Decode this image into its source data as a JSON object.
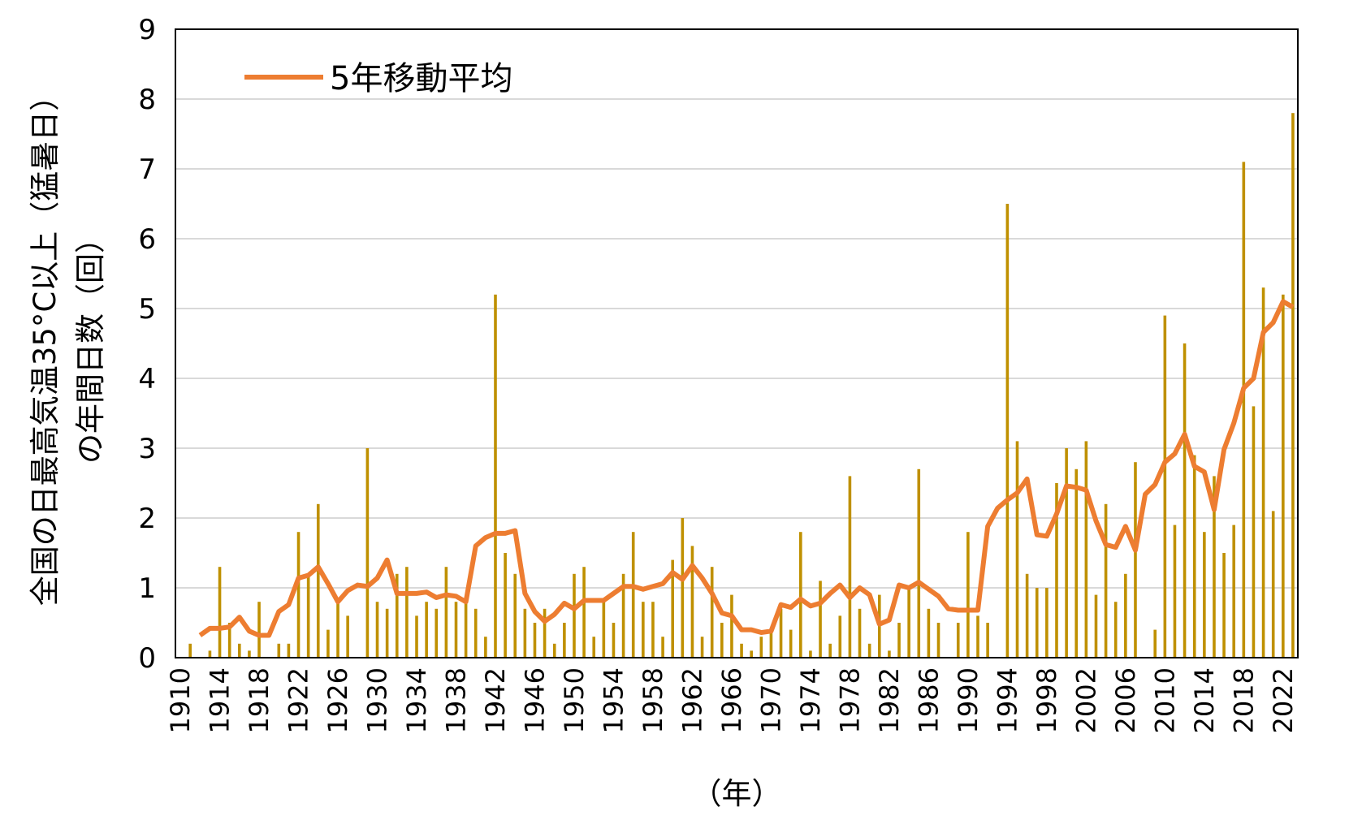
{
  "chart_data": {
    "type": "bar",
    "y_label": [
      "全国の日最高気温35°C以上（猛暑日）",
      "の年間日数（回）"
    ],
    "x_label": "（年）",
    "categories": [
      "1910",
      null,
      null,
      null,
      "1914",
      null,
      null,
      null,
      "1918",
      null,
      null,
      null,
      "1922",
      null,
      null,
      null,
      "1926",
      null,
      null,
      null,
      "1930",
      null,
      null,
      null,
      "1934",
      null,
      null,
      null,
      "1938",
      null,
      null,
      null,
      "1942",
      null,
      null,
      null,
      "1946",
      null,
      null,
      null,
      "1950",
      null,
      null,
      null,
      "1954",
      null,
      null,
      null,
      "1958",
      null,
      null,
      null,
      "1962",
      null,
      null,
      null,
      "1966",
      null,
      null,
      null,
      "1970",
      null,
      null,
      null,
      "1974",
      null,
      null,
      null,
      "1978",
      null,
      null,
      null,
      "1982",
      null,
      null,
      null,
      "1986",
      null,
      null,
      null,
      "1990",
      null,
      null,
      null,
      "1994",
      null,
      null,
      null,
      "1998",
      null,
      null,
      null,
      "2002",
      null,
      null,
      null,
      "2006",
      null,
      null,
      null,
      "2010",
      null,
      null,
      null,
      "2014",
      null,
      null,
      null,
      "2018",
      null,
      null,
      null,
      "2022",
      null
    ],
    "series": [
      {
        "type": "bar",
        "color": "#bf9000",
        "values": [
          0,
          0.2,
          0,
          0.1,
          1.3,
          0.5,
          0.2,
          0.1,
          0.8,
          0,
          0.2,
          0.2,
          1.8,
          1.2,
          2.2,
          0.4,
          0.8,
          0.6,
          0,
          3.0,
          0.8,
          0.7,
          1.2,
          1.3,
          0.6,
          0.8,
          0.7,
          1.3,
          0.8,
          0.8,
          0.7,
          0.3,
          5.2,
          1.5,
          1.2,
          0.7,
          0.5,
          0.7,
          0.2,
          0.5,
          1.2,
          1.3,
          0.3,
          0.8,
          0.5,
          1.2,
          1.8,
          0.8,
          0.8,
          0.3,
          1.4,
          2.0,
          1.6,
          0.3,
          1.3,
          0.5,
          0.9,
          0.2,
          0.1,
          0.3,
          0.4,
          0.7,
          0.4,
          1.8,
          0.1,
          1.1,
          0.2,
          0.6,
          2.6,
          0.7,
          0.2,
          0.9,
          0.1,
          0.5,
          1.0,
          2.7,
          0.7,
          0.5,
          0,
          0.5,
          1.8,
          0.6,
          0.5,
          0,
          6.5,
          3.1,
          1.2,
          1.0,
          1.0,
          2.5,
          3.0,
          2.7,
          3.1,
          0.9,
          2.2,
          0.8,
          1.2,
          2.8,
          0,
          0.4,
          4.9,
          1.9,
          4.5,
          2.9,
          1.8,
          2.6,
          1.5,
          1.9,
          7.1,
          3.6,
          5.3,
          2.1,
          5.2,
          7.8
        ]
      },
      {
        "type": "line",
        "name": "5年移動平均",
        "color": "#ed7d31",
        "values": [
          null,
          null,
          0.32,
          0.42,
          0.42,
          0.44,
          0.58,
          0.38,
          0.32,
          0.32,
          0.66,
          0.76,
          1.14,
          1.18,
          1.3,
          1.06,
          0.8,
          0.96,
          1.04,
          1.02,
          1.14,
          1.4,
          0.92,
          0.92,
          0.92,
          0.94,
          0.86,
          0.9,
          0.88,
          0.8,
          1.6,
          1.72,
          1.78,
          1.78,
          1.82,
          0.92,
          0.66,
          0.52,
          0.62,
          0.78,
          0.7,
          0.82,
          0.82,
          0.82,
          0.92,
          1.02,
          1.02,
          0.98,
          1.02,
          1.06,
          1.22,
          1.12,
          1.32,
          1.14,
          0.92,
          0.64,
          0.6,
          0.4,
          0.4,
          0.36,
          0.38,
          0.76,
          0.72,
          0.84,
          0.74,
          0.78,
          0.92,
          1.04,
          0.86,
          1.0,
          0.9,
          0.48,
          0.54,
          1.04,
          1.0,
          1.08,
          0.98,
          0.88,
          0.7,
          0.68,
          0.68,
          0.68,
          1.88,
          2.14,
          2.26,
          2.36,
          2.56,
          1.76,
          1.74,
          2.06,
          2.46,
          2.44,
          2.4,
          1.96,
          1.62,
          1.58,
          1.88,
          1.54,
          2.34,
          2.48,
          2.8,
          2.92,
          3.2,
          2.74,
          2.66,
          2.12,
          2.98,
          3.36,
          3.86,
          4.0,
          4.66,
          4.8,
          5.1,
          5.02
        ]
      }
    ],
    "ylim": [
      0,
      9
    ],
    "yticks": [
      0,
      1,
      2,
      3,
      4,
      5,
      6,
      7,
      8,
      9
    ],
    "grid": true,
    "legend": "top-left"
  }
}
